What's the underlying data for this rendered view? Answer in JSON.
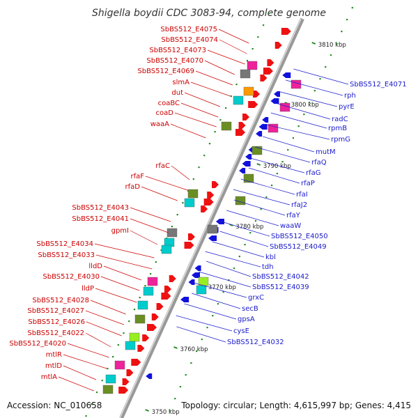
{
  "title": "Shigella boydii CDC 3083-94, complete genome",
  "footer": {
    "accession": "Accession: NC_010658",
    "topology": "Topology: circular; Length: 4,615,997 bp; Genes: 4,415"
  },
  "kbp_ticks": [
    "3810 kbp",
    "3800 kbp",
    "3790 kbp",
    "3780 kbp",
    "3770 kbp",
    "3760 kbp",
    "3750 kbp"
  ],
  "labels_left": [
    "SbBS512_E4075",
    "SbBS512_E4074",
    "SbBS512_E4073",
    "SbBS512_E4070",
    "SbBS512_E4069",
    "slmA",
    "dut",
    "coaBC",
    "coaD",
    "waaA",
    "rfaC",
    "rfaF",
    "rfaD",
    "SbBS512_E4043",
    "SbBS512_E4041",
    "gpmI",
    "SbBS512_E4034",
    "SbBS512_E4033",
    "lldD",
    "SbBS512_E4030",
    "lldP",
    "SbBS512_E4028",
    "SbBS512_E4027",
    "SbBS512_E4026",
    "SbBS512_E4022",
    "SbBS512_E4020",
    "mtlR",
    "mtlD",
    "mtlA"
  ],
  "labels_right": [
    "SbBS512_E4071",
    "rph",
    "pyrE",
    "radC",
    "rpmB",
    "rpmG",
    "mutM",
    "rfaQ",
    "rfaG",
    "rfaP",
    "rfaI",
    "rfaJ2",
    "rfaY",
    "waaW",
    "SbBS512_E4050",
    "SbBS512_E4049",
    "kbl",
    "tdh",
    "SbBS512_E4042",
    "SbBS512_E4039",
    "grxC",
    "secB",
    "gpsA",
    "cysE",
    "SbBS512_E4032"
  ],
  "colors": {
    "forward_gene": "#ee1111",
    "reverse_gene": "#1111dd",
    "backbone": "#888888",
    "left_label": "#cc0000",
    "right_label": "#1a1acc",
    "cog_olive": "#6b8e23",
    "cog_cyan": "#00cccc",
    "cog_magenta": "#ee2299",
    "cog_orange": "#ff9900",
    "cog_gray": "#777777",
    "cog_lime": "#99ee22",
    "tick_green": "#228b22"
  }
}
